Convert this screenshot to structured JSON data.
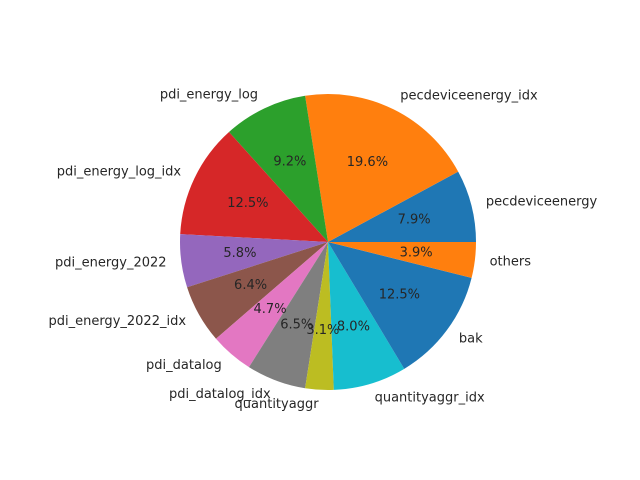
{
  "chart_data": {
    "type": "pie",
    "title": "",
    "start_angle_deg": 0,
    "direction": "counterclockwise",
    "slices": [
      {
        "label": "pecdeviceenergy",
        "value": 7.9,
        "pct_text": "7.9%",
        "color": "#1f77b4"
      },
      {
        "label": "pecdeviceenergy_idx",
        "value": 19.6,
        "pct_text": "19.6%",
        "color": "#ff7f0e"
      },
      {
        "label": "pdi_energy_log",
        "value": 9.2,
        "pct_text": "9.2%",
        "color": "#2ca02c"
      },
      {
        "label": "pdi_energy_log_idx",
        "value": 12.5,
        "pct_text": "12.5%",
        "color": "#d62728"
      },
      {
        "label": "pdi_energy_2022",
        "value": 5.8,
        "pct_text": "5.8%",
        "color": "#9467bd"
      },
      {
        "label": "pdi_energy_2022_idx",
        "value": 6.4,
        "pct_text": "6.4%",
        "color": "#8c564b"
      },
      {
        "label": "pdi_datalog",
        "value": 4.7,
        "pct_text": "4.7%",
        "color": "#e377c2"
      },
      {
        "label": "pdi_datalog_idx",
        "value": 6.5,
        "pct_text": "6.5%",
        "color": "#7f7f7f"
      },
      {
        "label": "quantityaggr",
        "value": 3.1,
        "pct_text": "3.1%",
        "color": "#bcbd22"
      },
      {
        "label": "quantityaggr_idx",
        "value": 8.0,
        "pct_text": "8.0%",
        "color": "#17becf"
      },
      {
        "label": "bak",
        "value": 12.5,
        "pct_text": "12.5%",
        "color": "#1f77b4"
      },
      {
        "label": "others",
        "value": 3.9,
        "pct_text": "3.9%",
        "color": "#ff7f0e"
      }
    ]
  }
}
